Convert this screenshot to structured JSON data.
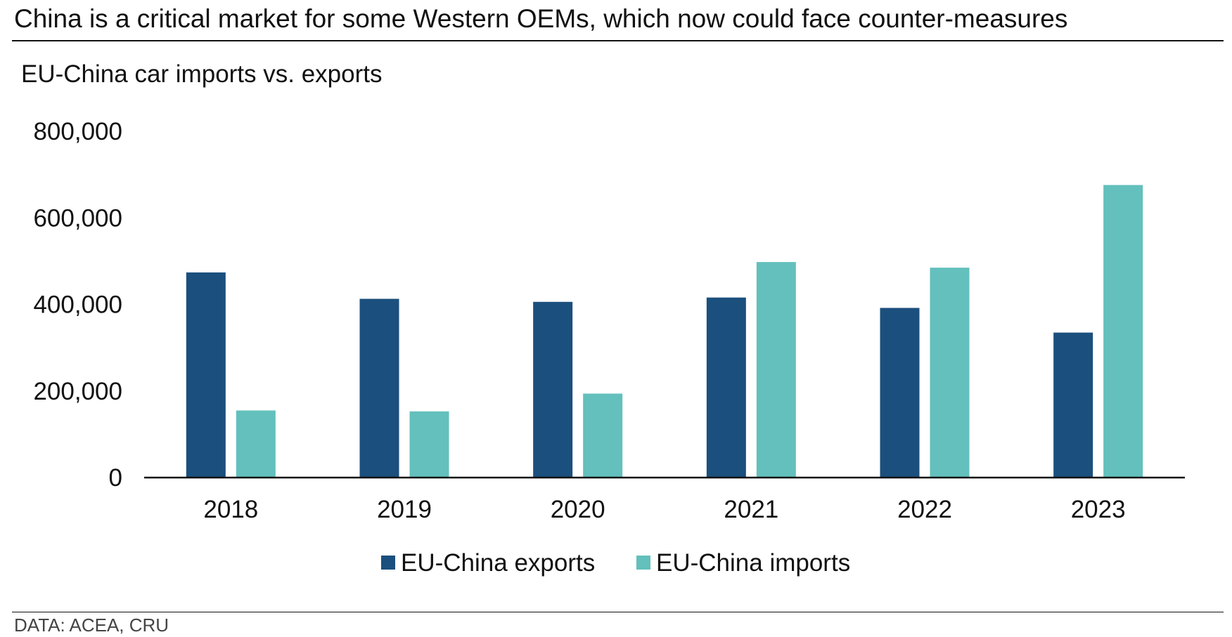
{
  "headline": "China is a critical market for some Western OEMs, which now could face counter-measures",
  "subtitle": "EU-China car imports vs. exports",
  "source": "DATA: ACEA, CRU",
  "colors": {
    "exports": "#1b4f7d",
    "imports": "#63c0bc",
    "axis": "#111111"
  },
  "chart_data": {
    "type": "bar",
    "title": "EU-China car imports vs. exports",
    "categories": [
      "2018",
      "2019",
      "2020",
      "2021",
      "2022",
      "2023"
    ],
    "series": [
      {
        "name": "EU-China exports",
        "values": [
          474000,
          413000,
          406000,
          416000,
          392000,
          335000
        ]
      },
      {
        "name": "EU-China imports",
        "values": [
          155000,
          153000,
          194000,
          498000,
          485000,
          676000
        ]
      }
    ],
    "yticks": [
      "0",
      "200,000",
      "400,000",
      "600,000",
      "800,000"
    ],
    "ylim": [
      0,
      800000
    ],
    "grid": false,
    "legend_position": "bottom-center"
  }
}
